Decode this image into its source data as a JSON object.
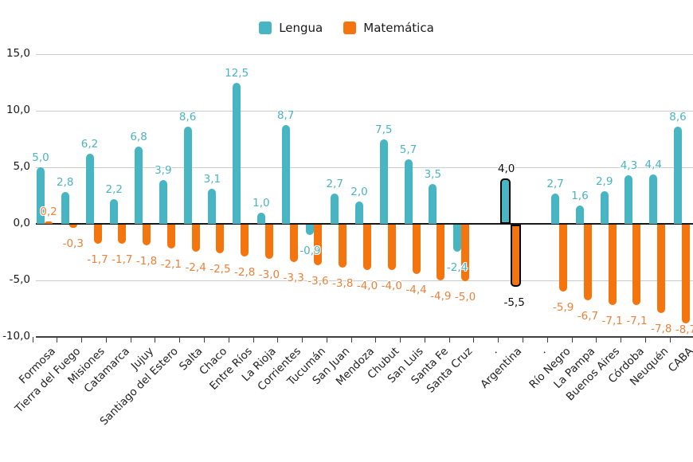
{
  "chart_data": {
    "type": "bar",
    "title": "",
    "categories": [
      "Formosa",
      "Tierra del Fuego",
      "Misiones",
      "Catamarca",
      "Jujuy",
      "Santiago del Estero",
      "Salta",
      "Chaco",
      "Entre Ríos",
      "La Rioja",
      "Corrientes",
      "Tucumán",
      "San Juan",
      "Mendoza",
      "Chubut",
      "San Luis",
      "Santa Fe",
      "Santa Cruz",
      ".",
      "Argentina",
      ".",
      "Río Negro",
      "La Pampa",
      "Buenos Aires",
      "Córdoba",
      "Neuquén",
      "CABA"
    ],
    "series": [
      {
        "name": "Lengua",
        "color": "#47b5c2",
        "label_color": "#4db3c2",
        "values": [
          5.0,
          2.8,
          6.2,
          2.2,
          6.8,
          3.9,
          8.6,
          3.1,
          12.5,
          1.0,
          8.7,
          -0.9,
          2.7,
          2.0,
          7.5,
          5.7,
          3.5,
          -2.4,
          null,
          4.0,
          null,
          2.7,
          1.6,
          2.9,
          4.3,
          4.4,
          8.6
        ],
        "labels": [
          "5,0",
          "2,8",
          "6,2",
          "2,2",
          "6,8",
          "3,9",
          "8,6",
          "3,1",
          "12,5",
          "1,0",
          "8,7",
          "-0,9",
          "2,7",
          "2,0",
          "7,5",
          "5,7",
          "3,5",
          "-2,4",
          null,
          "4,0",
          null,
          "2,7",
          "1,6",
          "2,9",
          "4,3",
          "4,4",
          "8,6"
        ]
      },
      {
        "name": "Matemática",
        "color": "#f4750e",
        "label_color": "#e8823c",
        "values": [
          0.2,
          -0.3,
          -1.7,
          -1.7,
          -1.8,
          -2.1,
          -2.4,
          -2.5,
          -2.8,
          -3.0,
          -3.3,
          -3.6,
          -3.8,
          -4.0,
          -4.0,
          -4.4,
          -4.9,
          -5.0,
          null,
          -5.5,
          null,
          -5.9,
          -6.7,
          -7.1,
          -7.1,
          -7.8,
          -8.7
        ],
        "labels": [
          "0,2",
          "-0,3",
          "-1,7",
          "-1,7",
          "-1,8",
          "-2,1",
          "-2,4",
          "-2,5",
          "-2,8",
          "-3,0",
          "-3,3",
          "-3,6",
          "-3,8",
          "-4,0",
          "-4,0",
          "-4,4",
          "-4,9",
          "-5,0",
          null,
          "-5,5",
          null,
          "-5,9",
          "-6,7",
          "-7,1",
          "-7,1",
          "-7,8",
          "-8,7"
        ]
      }
    ],
    "highlight_category": "Argentina",
    "highlight_outline_color": "#000000",
    "y_ticks": [
      "15,0",
      "10,0",
      "5,0",
      "0,0",
      "-5,0",
      "-10,0"
    ],
    "ylim": [
      -10,
      15
    ],
    "grid": true,
    "legend_position": "top-center"
  }
}
